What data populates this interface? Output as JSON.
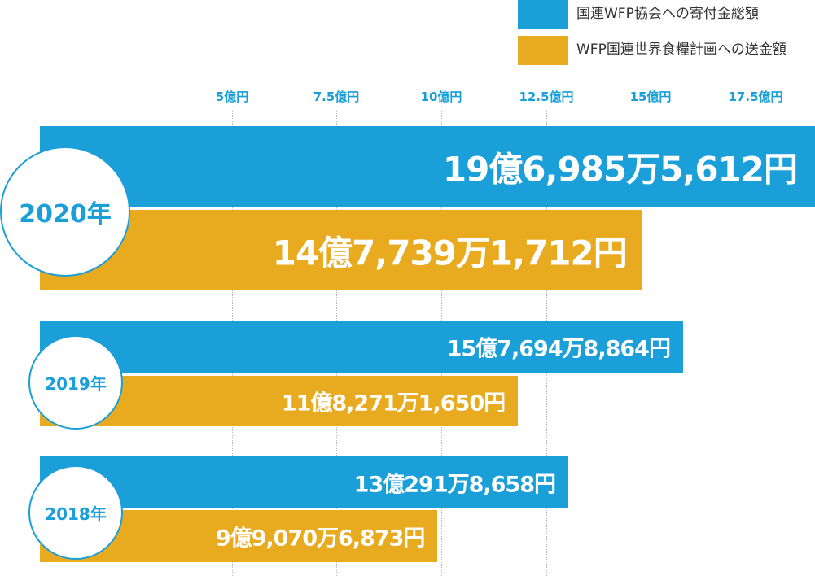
{
  "legend": [
    {
      "label": "国連WFP協会への寄付金総額",
      "color": "#1a9fd8"
    },
    {
      "label": "WFP国連世界食糧計画への送金額",
      "color": "#e8aa1e"
    }
  ],
  "chart_data": {
    "type": "bar",
    "orientation": "horizontal",
    "unit": "億円",
    "x_ticks": [
      "5億円",
      "7.5億円",
      "10億円",
      "12.5億円",
      "15億円",
      "17.5億円"
    ],
    "categories": [
      "2020年",
      "2019年",
      "2018年"
    ],
    "series": [
      {
        "name": "国連WFP協会への寄付金総額",
        "color": "#1a9fd8",
        "values": [
          19.69855612,
          15.76948864,
          13.02918658
        ],
        "labels": [
          "19億6,985万5,612円",
          "15億7,694万8,864円",
          "13億291万8,658円"
        ]
      },
      {
        "name": "WFP国連世界食糧計画への送金額",
        "color": "#e8aa1e",
        "values": [
          14.77391712,
          11.8271165,
          9.90706873
        ],
        "labels": [
          "14億7,739万1,712円",
          "11億8,271万1,650円",
          "9億9,070万6,873円"
        ]
      }
    ],
    "grid": true,
    "legend_position": "top-right"
  }
}
